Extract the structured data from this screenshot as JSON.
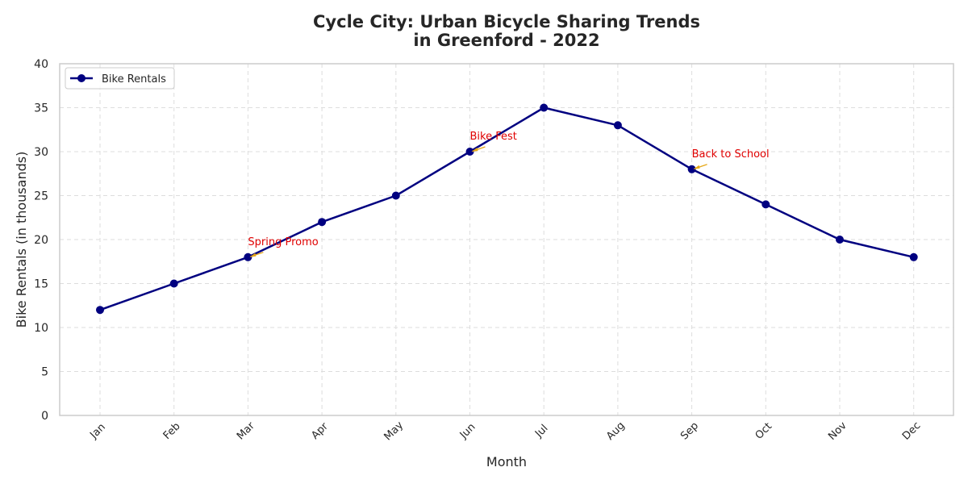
{
  "chart_data": {
    "type": "line",
    "title_lines": [
      "Cycle City: Urban Bicycle Sharing Trends",
      "in Greenford - 2022"
    ],
    "xlabel": "Month",
    "ylabel": "Bike Rentals (in thousands)",
    "categories": [
      "Jan",
      "Feb",
      "Mar",
      "Apr",
      "May",
      "Jun",
      "Jul",
      "Aug",
      "Sep",
      "Oct",
      "Nov",
      "Dec"
    ],
    "series": [
      {
        "name": "Bike Rentals",
        "values": [
          12,
          15,
          18,
          22,
          25,
          30,
          35,
          33,
          28,
          24,
          20,
          18
        ],
        "color": "#000080"
      }
    ],
    "ylim": [
      0,
      40
    ],
    "yticks": [
      0,
      5,
      10,
      15,
      20,
      25,
      30,
      35,
      40
    ],
    "grid": true,
    "legend_position": "top-left",
    "annotations": [
      {
        "text": "Spring Promo",
        "category": "Mar",
        "value": 18
      },
      {
        "text": "Bike Fest",
        "category": "Jun",
        "value": 30
      },
      {
        "text": "Back to School",
        "category": "Sep",
        "value": 28
      }
    ],
    "annotation_text_color": "#e00000",
    "annotation_arrow_color": "#e6a817",
    "grid_color": "#dddddd",
    "axes_edge_color": "#cccccc"
  }
}
